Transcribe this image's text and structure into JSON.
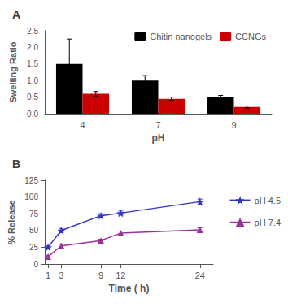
{
  "chart_data": [
    {
      "type": "bar",
      "title": "A",
      "xlabel": "pH",
      "ylabel": "Swelling Ratio",
      "categories": [
        "4",
        "7",
        "9"
      ],
      "series": [
        {
          "name": "Chitin nanogels",
          "color": "#000000",
          "values": [
            1.5,
            1.0,
            0.5
          ],
          "errors": [
            0.75,
            0.15,
            0.05
          ]
        },
        {
          "name": "CCNGs",
          "color": "#cc0000",
          "values": [
            0.6,
            0.45,
            0.2
          ],
          "errors": [
            0.07,
            0.05,
            0.03
          ]
        }
      ],
      "ylim": [
        0,
        2.5
      ],
      "yticks": [
        {
          "value": 0,
          "label": "0.0"
        },
        0.5,
        {
          "value": 1,
          "label": "1.0"
        },
        1.5,
        {
          "value": 2,
          "label": "2.0"
        },
        2.5
      ],
      "grid": false,
      "legend": "upper right"
    },
    {
      "type": "line",
      "title": "B",
      "xlabel": "Time ( h)",
      "ylabel": "% Release",
      "x": [
        1,
        3,
        9,
        12,
        24
      ],
      "series": [
        {
          "name": "pH 4.5",
          "color": "#3333cc",
          "marker": "star",
          "values": [
            25,
            50,
            72,
            76,
            93
          ],
          "errors": [
            2,
            3,
            3,
            3,
            4
          ]
        },
        {
          "name": "pH 7.4",
          "color": "#993399",
          "marker": "triangle",
          "values": [
            11,
            27,
            35,
            46,
            51
          ],
          "errors": [
            2,
            3,
            2,
            3,
            3
          ]
        }
      ],
      "xlim": [
        0.5,
        26
      ],
      "xticks": [
        1,
        3,
        9,
        12,
        24
      ],
      "ylim": [
        0,
        125
      ],
      "yticks": [
        0,
        25,
        50,
        75,
        100,
        125
      ],
      "grid": false,
      "legend": "right"
    }
  ]
}
